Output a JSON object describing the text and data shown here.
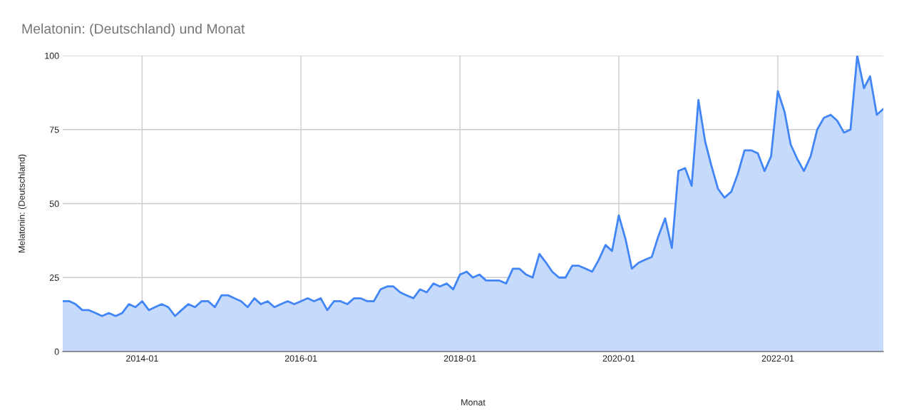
{
  "chart_data": {
    "type": "area",
    "title": "Melatonin: (Deutschland) und Monat",
    "xlabel": "Monat",
    "ylabel": "Melatonin: (Deutschland)",
    "x": [
      "2013-01",
      "2013-02",
      "2013-03",
      "2013-04",
      "2013-05",
      "2013-06",
      "2013-07",
      "2013-08",
      "2013-09",
      "2013-10",
      "2013-11",
      "2013-12",
      "2014-01",
      "2014-02",
      "2014-03",
      "2014-04",
      "2014-05",
      "2014-06",
      "2014-07",
      "2014-08",
      "2014-09",
      "2014-10",
      "2014-11",
      "2014-12",
      "2015-01",
      "2015-02",
      "2015-03",
      "2015-04",
      "2015-05",
      "2015-06",
      "2015-07",
      "2015-08",
      "2015-09",
      "2015-10",
      "2015-11",
      "2015-12",
      "2016-01",
      "2016-02",
      "2016-03",
      "2016-04",
      "2016-05",
      "2016-06",
      "2016-07",
      "2016-08",
      "2016-09",
      "2016-10",
      "2016-11",
      "2016-12",
      "2017-01",
      "2017-02",
      "2017-03",
      "2017-04",
      "2017-05",
      "2017-06",
      "2017-07",
      "2017-08",
      "2017-09",
      "2017-10",
      "2017-11",
      "2017-12",
      "2018-01",
      "2018-02",
      "2018-03",
      "2018-04",
      "2018-05",
      "2018-06",
      "2018-07",
      "2018-08",
      "2018-09",
      "2018-10",
      "2018-11",
      "2018-12",
      "2019-01",
      "2019-02",
      "2019-03",
      "2019-04",
      "2019-05",
      "2019-06",
      "2019-07",
      "2019-08",
      "2019-09",
      "2019-10",
      "2019-11",
      "2019-12",
      "2020-01",
      "2020-02",
      "2020-03",
      "2020-04",
      "2020-05",
      "2020-06",
      "2020-07",
      "2020-08",
      "2020-09",
      "2020-10",
      "2020-11",
      "2020-12",
      "2021-01",
      "2021-02",
      "2021-03",
      "2021-04",
      "2021-05",
      "2021-06",
      "2021-07",
      "2021-08",
      "2021-09",
      "2021-10",
      "2021-11",
      "2021-12",
      "2022-01",
      "2022-02",
      "2022-03",
      "2022-04",
      "2022-05",
      "2022-06",
      "2022-07",
      "2022-08",
      "2022-09",
      "2022-10",
      "2022-11",
      "2022-12",
      "2023-01",
      "2023-02",
      "2023-03",
      "2023-04",
      "2023-05"
    ],
    "series": [
      {
        "color": "#4285f4",
        "values": [
          17,
          17,
          16,
          14,
          14,
          13,
          12,
          13,
          12,
          13,
          16,
          15,
          17,
          14,
          15,
          16,
          15,
          12,
          14,
          16,
          15,
          17,
          17,
          15,
          19,
          19,
          18,
          17,
          15,
          18,
          16,
          17,
          15,
          16,
          17,
          16,
          17,
          18,
          17,
          18,
          14,
          17,
          17,
          16,
          18,
          18,
          17,
          17,
          21,
          22,
          22,
          20,
          19,
          18,
          21,
          20,
          23,
          22,
          23,
          21,
          26,
          27,
          25,
          26,
          24,
          24,
          24,
          23,
          28,
          28,
          26,
          25,
          33,
          30,
          27,
          25,
          25,
          29,
          29,
          28,
          27,
          31,
          36,
          34,
          46,
          38,
          28,
          30,
          31,
          32,
          39,
          45,
          35,
          61,
          62,
          56,
          85,
          71,
          63,
          55,
          52,
          54,
          60,
          68,
          68,
          67,
          61,
          66,
          88,
          81,
          70,
          65,
          61,
          66,
          75,
          79,
          80,
          78,
          74,
          75,
          100,
          89,
          93,
          80,
          82
        ]
      }
    ],
    "xlim": [
      "2013-01",
      "2023-05"
    ],
    "xticks": [
      "2014-01",
      "2016-01",
      "2018-01",
      "2020-01",
      "2022-01"
    ],
    "ylim": [
      0,
      100
    ],
    "yticks": [
      0,
      25,
      50,
      75,
      100
    ],
    "grid": true
  }
}
